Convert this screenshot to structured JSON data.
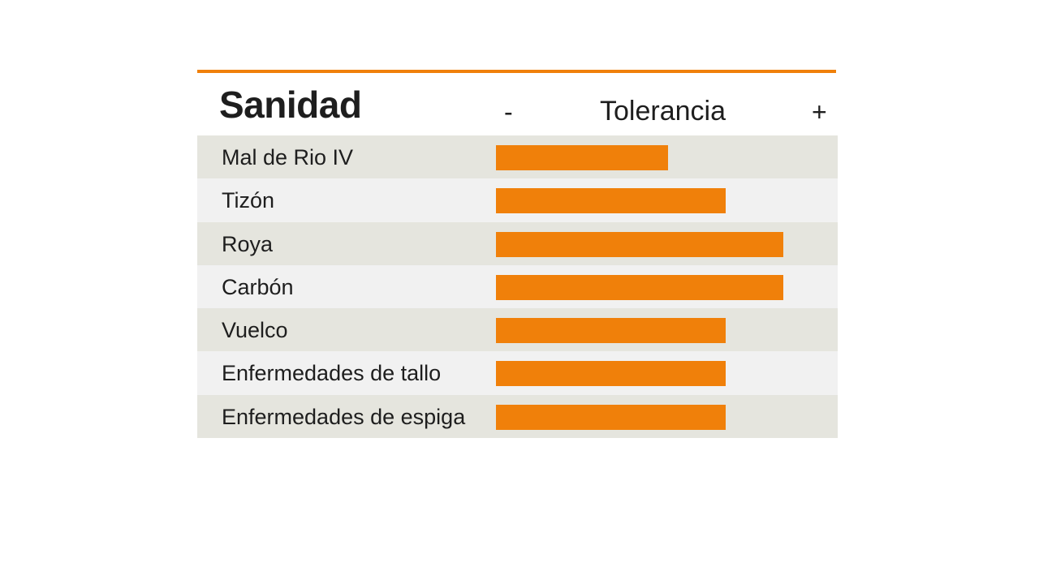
{
  "chart_data": {
    "type": "bar",
    "orientation": "horizontal",
    "title": "Sanidad",
    "scale_label": "Tolerancia",
    "scale_min_label": "-",
    "scale_max_label": "+",
    "categories": [
      "Mal de Rio IV",
      "Tizón",
      "Roya",
      "Carbón",
      "Vuelco",
      "Enfermedades de tallo",
      "Enfermedades de espiga"
    ],
    "values": [
      6,
      8,
      10,
      10,
      8,
      8,
      8
    ],
    "xlim": [
      0,
      10
    ],
    "grid": false,
    "legend": "none"
  },
  "colors": {
    "accent": "#f0800a",
    "row_odd": "#e5e5de",
    "row_even": "#f1f1f1",
    "text": "#1e1e1e"
  }
}
